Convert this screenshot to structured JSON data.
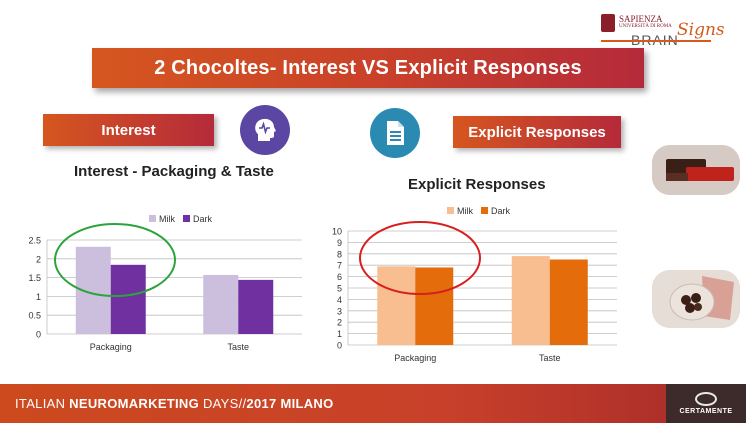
{
  "title": "2 Chocoltes- Interest VS  Explicit Responses",
  "logo": {
    "line1": "SAPIENZA",
    "line2": "UNIVERSITÀ DI ROMA",
    "brain": "BRAIN",
    "signs": "Signs"
  },
  "interest_label": "Interest",
  "explicit_label": "Explicit Responses",
  "interest_subtitle": "Interest - Packaging & Taste",
  "explicit_subtitle": "Explicit Responses",
  "icons": {
    "head": "brain-head-icon",
    "doc": "document-icon"
  },
  "colors": {
    "milk_interest": "#cbbfdd",
    "dark_interest": "#7030a0",
    "milk_explicit": "#f9be8f",
    "dark_explicit": "#e46c0a",
    "banner": "#c8402a"
  },
  "footer": {
    "part1": "ITALIAN ",
    "part2": "NEUROMARKETING",
    "part3": " DAYS//",
    "part4": "2017 MILANO",
    "logo_text": "CERTAMENTE"
  },
  "chart_data": [
    {
      "type": "bar",
      "title": "",
      "categories": [
        "Packaging",
        "Taste"
      ],
      "series": [
        {
          "name": "Milk",
          "values": [
            2.32,
            1.57
          ]
        },
        {
          "name": "Dark",
          "values": [
            1.84,
            1.44
          ]
        }
      ],
      "ylim": [
        0,
        2.5
      ],
      "yticks": [
        "0",
        "0.5",
        "1",
        "1.5",
        "2",
        "2.5"
      ],
      "grid": true,
      "legend": "top"
    },
    {
      "type": "bar",
      "title": "",
      "categories": [
        "Packaging",
        "Taste"
      ],
      "series": [
        {
          "name": "Milk",
          "values": [
            6.9,
            7.8
          ]
        },
        {
          "name": "Dark",
          "values": [
            6.8,
            7.5
          ]
        }
      ],
      "ylim": [
        0,
        10
      ],
      "yticks": [
        "0",
        "1",
        "2",
        "3",
        "4",
        "5",
        "6",
        "7",
        "8",
        "9",
        "10"
      ],
      "grid": true,
      "legend": "top"
    }
  ]
}
